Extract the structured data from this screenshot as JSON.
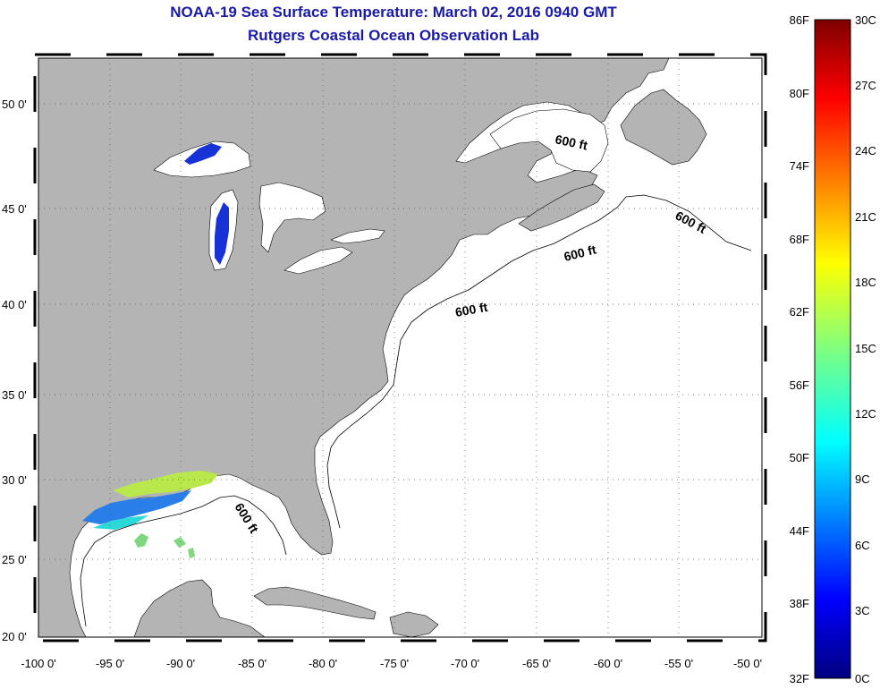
{
  "title": "NOAA-19 Sea Surface Temperature:  March 02, 2016 0940 GMT",
  "subtitle": "Rutgers Coastal Ocean Observation Lab",
  "x_ticks": [
    "-100 0'",
    "-95 0'",
    "-90 0'",
    "-85 0'",
    "-80 0'",
    "-75 0'",
    "-70 0'",
    "-65 0'",
    "-60 0'",
    "-55 0'",
    "-50 0'"
  ],
  "y_ticks": [
    "50 0'",
    "45 0'",
    "40 0'",
    "35 0'",
    "30 0'",
    "25 0'",
    "20 0'"
  ],
  "contour_label": "600 ft",
  "colorbar": {
    "fahrenheit": [
      "86F",
      "80F",
      "74F",
      "68F",
      "62F",
      "56F",
      "50F",
      "44F",
      "38F",
      "32F"
    ],
    "celsius": [
      "30C",
      "27C",
      "24C",
      "21C",
      "18C",
      "15C",
      "12C",
      "9C",
      "6C",
      "3C",
      "0C"
    ]
  },
  "colors": {
    "title": "#1a1aa8",
    "land": "#b4b4b4",
    "ocean": "#ffffff"
  }
}
